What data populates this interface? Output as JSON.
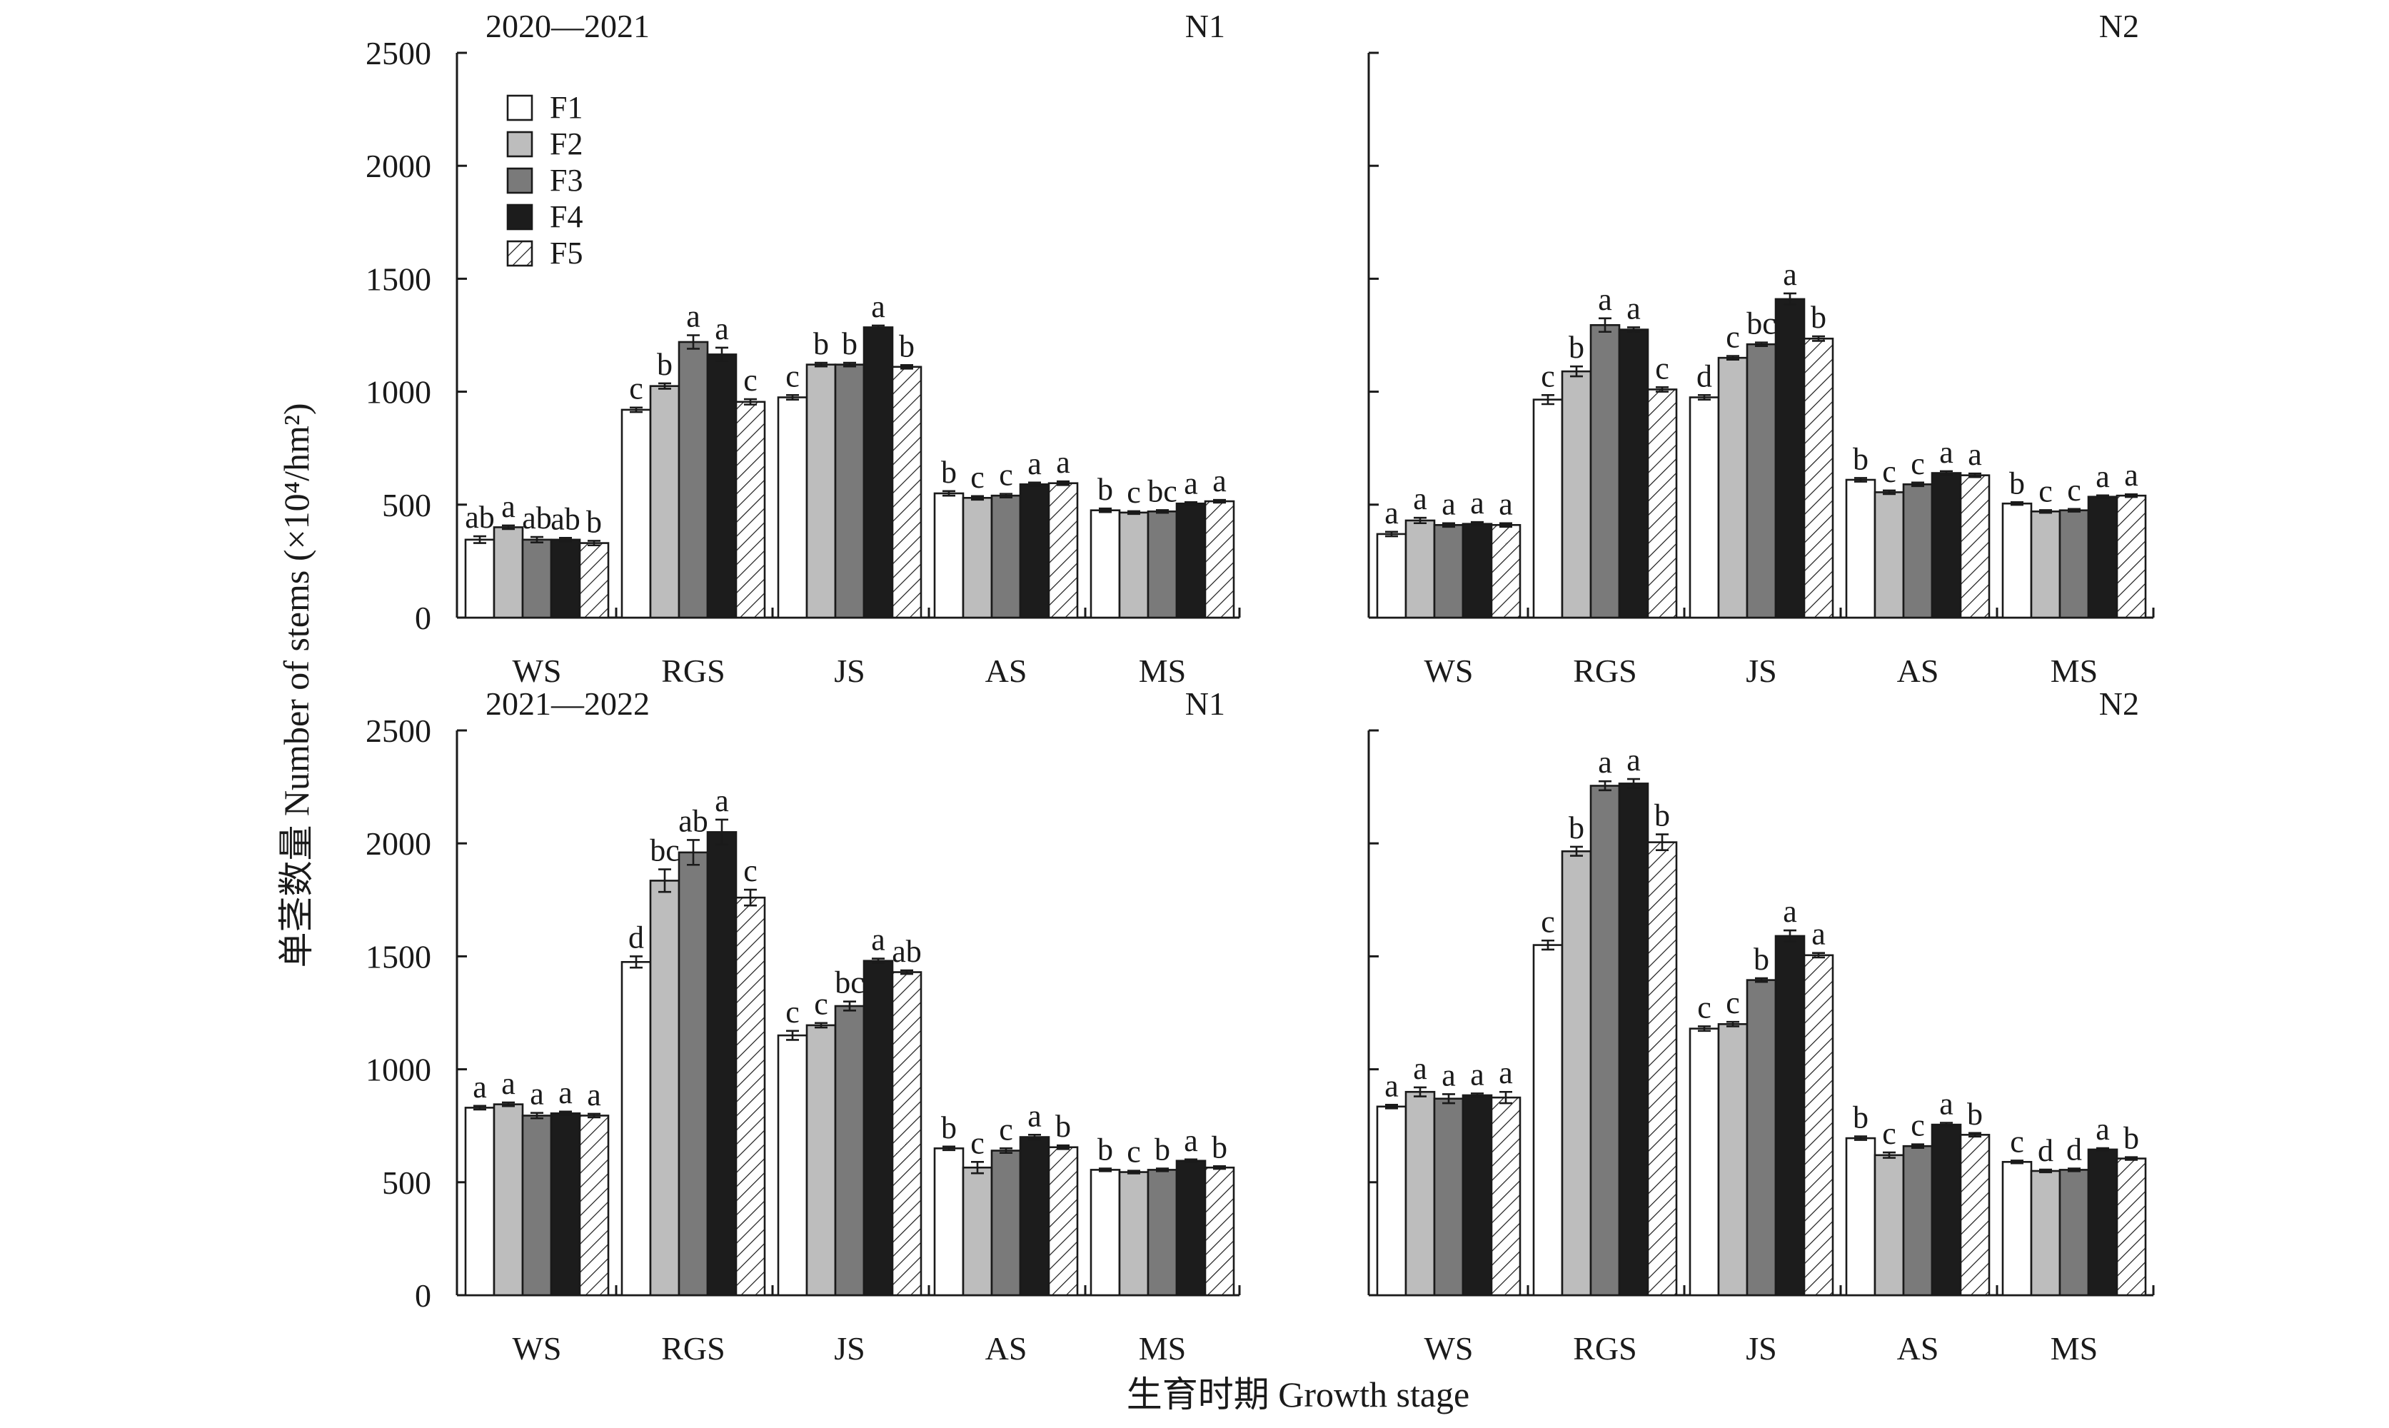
{
  "chart_data": [
    {
      "type": "bar",
      "title": "2020—2021",
      "panel_label": "N1",
      "categories": [
        "WS",
        "RGS",
        "JS",
        "AS",
        "MS"
      ],
      "ylim": [
        0,
        2500
      ],
      "yticks": [
        0,
        500,
        1000,
        1500,
        2000,
        2500
      ],
      "series": [
        {
          "name": "F1",
          "values": [
            345,
            920,
            975,
            550,
            475
          ],
          "errors": [
            15,
            10,
            10,
            10,
            8
          ],
          "letters": [
            "ab",
            "c",
            "c",
            "b",
            "b"
          ]
        },
        {
          "name": "F2",
          "values": [
            400,
            1025,
            1120,
            530,
            465
          ],
          "errors": [
            8,
            12,
            8,
            8,
            6
          ],
          "letters": [
            "a",
            "b",
            "b",
            "c",
            "c"
          ]
        },
        {
          "name": "F3",
          "values": [
            345,
            1220,
            1120,
            540,
            470
          ],
          "errors": [
            12,
            30,
            8,
            8,
            6
          ],
          "letters": [
            "ab",
            "a",
            "b",
            "c",
            "bc"
          ]
        },
        {
          "name": "F4",
          "values": [
            345,
            1165,
            1285,
            590,
            505
          ],
          "errors": [
            8,
            30,
            8,
            8,
            6
          ],
          "letters": [
            "ab",
            "a",
            "a",
            "a",
            "a"
          ]
        },
        {
          "name": "F5",
          "values": [
            330,
            955,
            1110,
            595,
            515
          ],
          "errors": [
            10,
            12,
            8,
            8,
            6
          ],
          "letters": [
            "b",
            "c",
            "b",
            "a",
            "a"
          ]
        }
      ],
      "legend": {
        "entries": [
          "F1",
          "F2",
          "F3",
          "F4",
          "F5"
        ],
        "position": "top-left"
      }
    },
    {
      "type": "bar",
      "title": "",
      "panel_label": "N2",
      "categories": [
        "WS",
        "RGS",
        "JS",
        "AS",
        "MS"
      ],
      "ylim": [
        0,
        2500
      ],
      "series": [
        {
          "name": "F1",
          "values": [
            370,
            965,
            975,
            610,
            505
          ],
          "errors": [
            10,
            20,
            10,
            8,
            6
          ],
          "letters": [
            "a",
            "c",
            "d",
            "b",
            "b"
          ]
        },
        {
          "name": "F2",
          "values": [
            430,
            1090,
            1150,
            555,
            470
          ],
          "errors": [
            12,
            22,
            8,
            8,
            6
          ],
          "letters": [
            "a",
            "b",
            "c",
            "c",
            "c"
          ]
        },
        {
          "name": "F3",
          "values": [
            410,
            1295,
            1210,
            590,
            475
          ],
          "errors": [
            8,
            30,
            8,
            8,
            6
          ],
          "letters": [
            "a",
            "a",
            "bc",
            "c",
            "c"
          ]
        },
        {
          "name": "F4",
          "values": [
            415,
            1275,
            1410,
            640,
            535
          ],
          "errors": [
            8,
            10,
            25,
            8,
            6
          ],
          "letters": [
            "a",
            "a",
            "a",
            "a",
            "a"
          ]
        },
        {
          "name": "F5",
          "values": [
            410,
            1010,
            1235,
            630,
            540
          ],
          "errors": [
            8,
            10,
            10,
            8,
            6
          ],
          "letters": [
            "a",
            "c",
            "b",
            "a",
            "a"
          ]
        }
      ]
    },
    {
      "type": "bar",
      "title": "2021—2022",
      "panel_label": "N1",
      "categories": [
        "WS",
        "RGS",
        "JS",
        "AS",
        "MS"
      ],
      "ylim": [
        0,
        2500
      ],
      "yticks": [
        0,
        500,
        1000,
        1500,
        2000,
        2500
      ],
      "series": [
        {
          "name": "F1",
          "values": [
            830,
            1475,
            1150,
            650,
            555
          ],
          "errors": [
            8,
            25,
            20,
            8,
            6
          ],
          "letters": [
            "a",
            "d",
            "c",
            "b",
            "b"
          ]
        },
        {
          "name": "F2",
          "values": [
            845,
            1835,
            1195,
            565,
            545
          ],
          "errors": [
            8,
            50,
            10,
            25,
            6
          ],
          "letters": [
            "a",
            "bc",
            "c",
            "c",
            "c"
          ]
        },
        {
          "name": "F3",
          "values": [
            795,
            1960,
            1280,
            640,
            555
          ],
          "errors": [
            12,
            55,
            20,
            10,
            6
          ],
          "letters": [
            "a",
            "ab",
            "bc",
            "c",
            "b"
          ]
        },
        {
          "name": "F4",
          "values": [
            805,
            2050,
            1480,
            700,
            595
          ],
          "errors": [
            8,
            55,
            10,
            10,
            6
          ],
          "letters": [
            "a",
            "a",
            "a",
            "a",
            "a"
          ]
        },
        {
          "name": "F5",
          "values": [
            795,
            1760,
            1430,
            655,
            565
          ],
          "errors": [
            8,
            35,
            8,
            8,
            6
          ],
          "letters": [
            "a",
            "c",
            "ab",
            "b",
            "b"
          ]
        }
      ]
    },
    {
      "type": "bar",
      "title": "",
      "panel_label": "N2",
      "categories": [
        "WS",
        "RGS",
        "JS",
        "AS",
        "MS"
      ],
      "ylim": [
        0,
        2500
      ],
      "series": [
        {
          "name": "F1",
          "values": [
            835,
            1550,
            1180,
            695,
            590
          ],
          "errors": [
            8,
            20,
            10,
            8,
            6
          ],
          "letters": [
            "a",
            "c",
            "c",
            "b",
            "c"
          ]
        },
        {
          "name": "F2",
          "values": [
            900,
            1965,
            1200,
            620,
            550
          ],
          "errors": [
            20,
            20,
            10,
            12,
            6
          ],
          "letters": [
            "a",
            "b",
            "c",
            "c",
            "d"
          ]
        },
        {
          "name": "F3",
          "values": [
            870,
            2255,
            1395,
            660,
            555
          ],
          "errors": [
            20,
            20,
            8,
            8,
            6
          ],
          "letters": [
            "a",
            "a",
            "b",
            "c",
            "d"
          ]
        },
        {
          "name": "F4",
          "values": [
            885,
            2265,
            1590,
            755,
            645
          ],
          "errors": [
            8,
            20,
            25,
            8,
            6
          ],
          "letters": [
            "a",
            "a",
            "a",
            "a",
            "a"
          ]
        },
        {
          "name": "F5",
          "values": [
            875,
            2005,
            1505,
            710,
            605
          ],
          "errors": [
            25,
            35,
            10,
            8,
            6
          ],
          "letters": [
            "a",
            "b",
            "a",
            "b",
            "b"
          ]
        }
      ]
    }
  ],
  "axes": {
    "ylabel": "单茎数量 Number of stems (×10⁴/hm²)",
    "xlabel": "生育时期 Growth stage"
  },
  "series_styles": [
    {
      "name": "F1",
      "fill": "#ffffff",
      "pattern": "none"
    },
    {
      "name": "F2",
      "fill": "#bdbdbd",
      "pattern": "none"
    },
    {
      "name": "F3",
      "fill": "#7a7a7a",
      "pattern": "none"
    },
    {
      "name": "F4",
      "fill": "#1c1c1c",
      "pattern": "none"
    },
    {
      "name": "F5",
      "fill": "#ffffff",
      "pattern": "diagonal-hatch"
    }
  ]
}
